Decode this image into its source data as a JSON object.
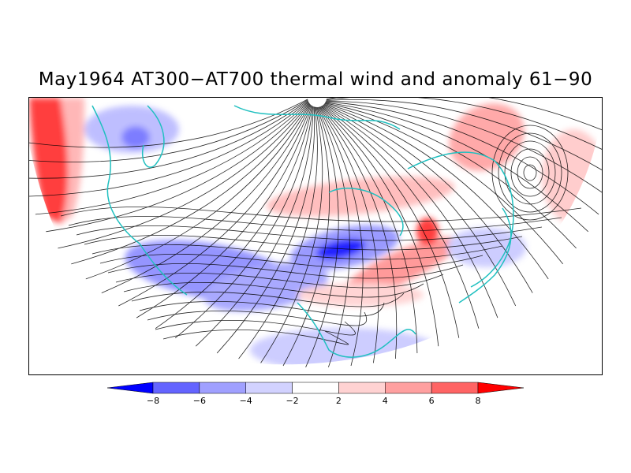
{
  "title": "May1964 AT300−AT700 thermal wind and anomaly 61−90",
  "colorbar": {
    "labels": [
      "−8",
      "−6",
      "−4",
      "−2",
      "2",
      "4",
      "6",
      "8"
    ],
    "colors": [
      "#0000ff",
      "#6464ff",
      "#a0a0ff",
      "#d2d2ff",
      "#ffffff",
      "#ffd2d2",
      "#ffa0a0",
      "#ff6464",
      "#ff0000"
    ]
  },
  "map": {
    "projection": "polar-stereographic-half-disk",
    "field": "thermal wind streamlines",
    "anomaly_colors": {
      "negative": "#6464ff",
      "positive": "#ff6464"
    },
    "coastline_color": "#20c0c0"
  }
}
